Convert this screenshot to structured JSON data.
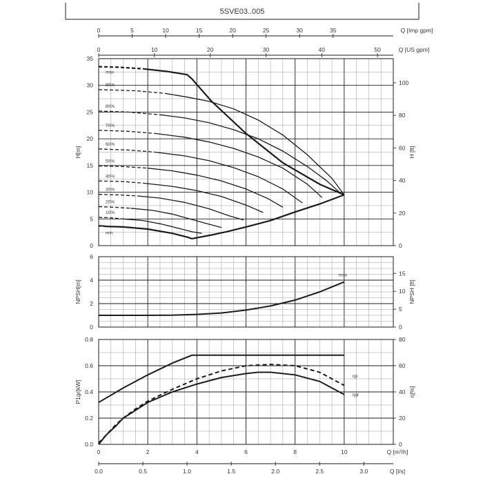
{
  "title": "5SVE03..005",
  "colors": {
    "line": "#1a1a1a",
    "grid": "#9a9a9a",
    "grid_major": "#1a1a1a",
    "text": "#333333"
  },
  "chart_data": [
    {
      "type": "line",
      "name": "head",
      "ylabel_left": "H[m]",
      "ylabel_right": "H [ft]",
      "xlim": [
        0,
        12
      ],
      "ylim": [
        0,
        35
      ],
      "left_ticks": [
        "0",
        "5",
        "10",
        "15",
        "20",
        "25",
        "30",
        "35"
      ],
      "right_ticks": [
        "0",
        "20",
        "40",
        "60",
        "80",
        "100"
      ],
      "right_tick_values": [
        0,
        20,
        40,
        60,
        80,
        100
      ],
      "top_axes": [
        {
          "label": "Q [Imp gpm]",
          "ticks": [
            "0",
            "5",
            "10",
            "15",
            "20",
            "25",
            "30",
            "35"
          ],
          "tick_values": [
            0,
            5,
            10,
            15,
            20,
            25,
            30,
            35
          ]
        },
        {
          "label": "Q [US gpm]",
          "ticks": [
            "0",
            "10",
            "20",
            "30",
            "40",
            "50"
          ],
          "tick_values": [
            0,
            10,
            20,
            30,
            40,
            50
          ]
        }
      ],
      "speed_labels": [
        "max",
        "90%",
        "80%",
        "70%",
        "60%",
        "50%",
        "40%",
        "30%",
        "20%",
        "10%",
        "min"
      ],
      "series": [
        {
          "name": "max",
          "dashed_until": 1.8,
          "x": [
            0,
            0.8,
            1.8,
            2.8,
            3.6,
            3.8,
            4.6,
            6,
            7.5,
            9,
            10
          ],
          "y": [
            33.5,
            33.4,
            33.1,
            32.6,
            32.0,
            31.2,
            27.0,
            21.0,
            15.5,
            11.5,
            9.5
          ]
        },
        {
          "name": "90%",
          "dashed_until": 2.7,
          "x": [
            0,
            1.5,
            2.7,
            3.6,
            4.5,
            5.5,
            6.5,
            7.5,
            8.5,
            9.5,
            10
          ],
          "y": [
            29.2,
            29.0,
            28.5,
            27.8,
            27.0,
            25.6,
            23.5,
            20.7,
            17.0,
            12.6,
            9.5
          ]
        },
        {
          "name": "80%",
          "dashed_until": 2.5,
          "x": [
            0,
            1.2,
            2.5,
            3.5,
            4.5,
            5.5,
            6.5,
            7.5,
            8.5,
            9.3,
            9.9
          ],
          "y": [
            25.2,
            25.0,
            24.5,
            23.9,
            23.0,
            21.7,
            20.0,
            17.7,
            14.8,
            12.1,
            9.6
          ]
        },
        {
          "name": "70%",
          "dashed_until": 2.3,
          "x": [
            0,
            1.2,
            2.3,
            3.5,
            4.5,
            5.5,
            6.5,
            7.5,
            8.5,
            9.1
          ],
          "y": [
            21.6,
            21.4,
            21.0,
            20.3,
            19.4,
            18.2,
            16.6,
            14.5,
            11.5,
            9.0
          ]
        },
        {
          "name": "60%",
          "dashed_until": 2.3,
          "x": [
            0,
            1.2,
            2.3,
            3.5,
            4.5,
            5.5,
            6.5,
            7.5,
            8.3
          ],
          "y": [
            18.1,
            17.9,
            17.5,
            16.8,
            15.9,
            14.6,
            12.9,
            10.6,
            8.0
          ]
        },
        {
          "name": "50%",
          "dashed_until": 2.0,
          "x": [
            0,
            1.0,
            2.0,
            3.0,
            4.0,
            5.0,
            6.0,
            6.9,
            7.5
          ],
          "y": [
            14.9,
            14.8,
            14.5,
            14.0,
            13.2,
            12.1,
            10.6,
            8.8,
            7.2
          ]
        },
        {
          "name": "40%",
          "dashed_until": 1.8,
          "x": [
            0,
            1.0,
            1.8,
            3.0,
            4.0,
            5.0,
            6.0,
            6.7
          ],
          "y": [
            12.1,
            12.0,
            11.7,
            11.1,
            10.3,
            9.2,
            7.6,
            6.2
          ]
        },
        {
          "name": "30%",
          "dashed_until": 1.6,
          "x": [
            0,
            0.8,
            1.6,
            2.5,
            3.5,
            4.5,
            5.3,
            5.9
          ],
          "y": [
            9.6,
            9.5,
            9.3,
            8.9,
            8.1,
            6.9,
            5.6,
            4.8
          ]
        },
        {
          "name": "20%",
          "dashed_until": 1.3,
          "x": [
            0,
            0.6,
            1.3,
            2.2,
            3.0,
            3.8,
            4.5,
            5.0
          ],
          "y": [
            7.3,
            7.2,
            7.0,
            6.6,
            5.9,
            4.9,
            4.0,
            3.4
          ]
        },
        {
          "name": "10%",
          "dashed_until": 1.0,
          "x": [
            0,
            0.5,
            1.0,
            1.8,
            2.5,
            3.2,
            3.8,
            4.2
          ],
          "y": [
            5.3,
            5.2,
            5.0,
            4.7,
            4.1,
            3.3,
            2.6,
            2.3
          ]
        },
        {
          "name": "min",
          "dashed_until": 0.15,
          "x": [
            0,
            0.15,
            0.3,
            1.0,
            2.0,
            3.0,
            3.6,
            3.8
          ],
          "y": [
            3.7,
            3.7,
            3.6,
            3.5,
            3.1,
            2.3,
            1.6,
            1.3
          ]
        }
      ],
      "envelope": {
        "x": [
          3.8,
          4.6,
          5.2,
          6.0,
          7.0,
          8.0,
          9.0,
          10.0
        ],
        "y": [
          1.3,
          2.0,
          2.6,
          3.5,
          4.7,
          6.3,
          7.8,
          9.5
        ]
      }
    },
    {
      "type": "line",
      "name": "npsh",
      "ylabel_left": "NPSH[m]",
      "ylabel_right": "NPSH [ft]",
      "xlim": [
        0,
        12
      ],
      "ylim": [
        0,
        6
      ],
      "left_ticks": [
        "0",
        "2",
        "4",
        "6"
      ],
      "right_ticks": [
        "0",
        "5",
        "10",
        "15"
      ],
      "right_tick_values": [
        0,
        5,
        10,
        15
      ],
      "series": [
        {
          "name": "max",
          "x": [
            0,
            1,
            2,
            3,
            4,
            5,
            6,
            7,
            8,
            9,
            10
          ],
          "y": [
            1.0,
            1.0,
            1.0,
            1.02,
            1.08,
            1.2,
            1.45,
            1.8,
            2.3,
            3.0,
            3.85
          ]
        }
      ]
    },
    {
      "type": "line",
      "name": "power",
      "ylabel_left": "P1gr[kW]",
      "ylabel_right": "η[%]",
      "xlabel_bottom": "Q [m³/h]",
      "xlabel_bottom2": "Q [l/s]",
      "xlim": [
        0,
        12
      ],
      "ylim": [
        0,
        0.8
      ],
      "left_ticks": [
        "0.0",
        "0.2",
        "0.4",
        "0.6",
        "0.8"
      ],
      "right_ticks": [
        "0",
        "20",
        "40",
        "60",
        "80"
      ],
      "right_tick_values": [
        0,
        20,
        40,
        60,
        80
      ],
      "bottom_ticks": [
        "0",
        "2",
        "4",
        "6",
        "8",
        "10"
      ],
      "bottom_tick_values": [
        0,
        2,
        4,
        6,
        8,
        10
      ],
      "bottom2_ticks": [
        "0.0",
        "0.5",
        "1.0",
        "1.5",
        "2.0",
        "2.5",
        "3.0"
      ],
      "bottom2_tick_values": [
        0,
        0.5,
        1.0,
        1.5,
        2.0,
        2.5,
        3.0
      ],
      "series": [
        {
          "name": "P1gr",
          "x": [
            0,
            1,
            2,
            3,
            3.8,
            4.0,
            6,
            8,
            10
          ],
          "y": [
            0.32,
            0.43,
            0.53,
            0.62,
            0.68,
            0.68,
            0.68,
            0.68,
            0.68
          ]
        },
        {
          "name": "ηp",
          "dashed": true,
          "x": [
            0,
            0.3,
            0.7,
            1.0,
            1.5,
            2.0,
            3.0,
            4.0,
            5.0,
            6.0,
            7.0,
            8.0,
            9.0,
            10.0
          ],
          "y": [
            0.01,
            0.07,
            0.15,
            0.2,
            0.27,
            0.33,
            0.42,
            0.5,
            0.56,
            0.6,
            0.61,
            0.6,
            0.55,
            0.45
          ]
        },
        {
          "name": "ηgr",
          "x": [
            0,
            0.3,
            0.7,
            1.0,
            1.5,
            2.0,
            3.0,
            4.0,
            5.0,
            6.0,
            6.5,
            7.0,
            8.0,
            9.0,
            10.0
          ],
          "y": [
            0.0,
            0.07,
            0.14,
            0.2,
            0.26,
            0.32,
            0.4,
            0.46,
            0.51,
            0.54,
            0.55,
            0.55,
            0.53,
            0.48,
            0.38
          ]
        }
      ],
      "curve_labels": [
        "ηp",
        "ηgr"
      ]
    }
  ]
}
